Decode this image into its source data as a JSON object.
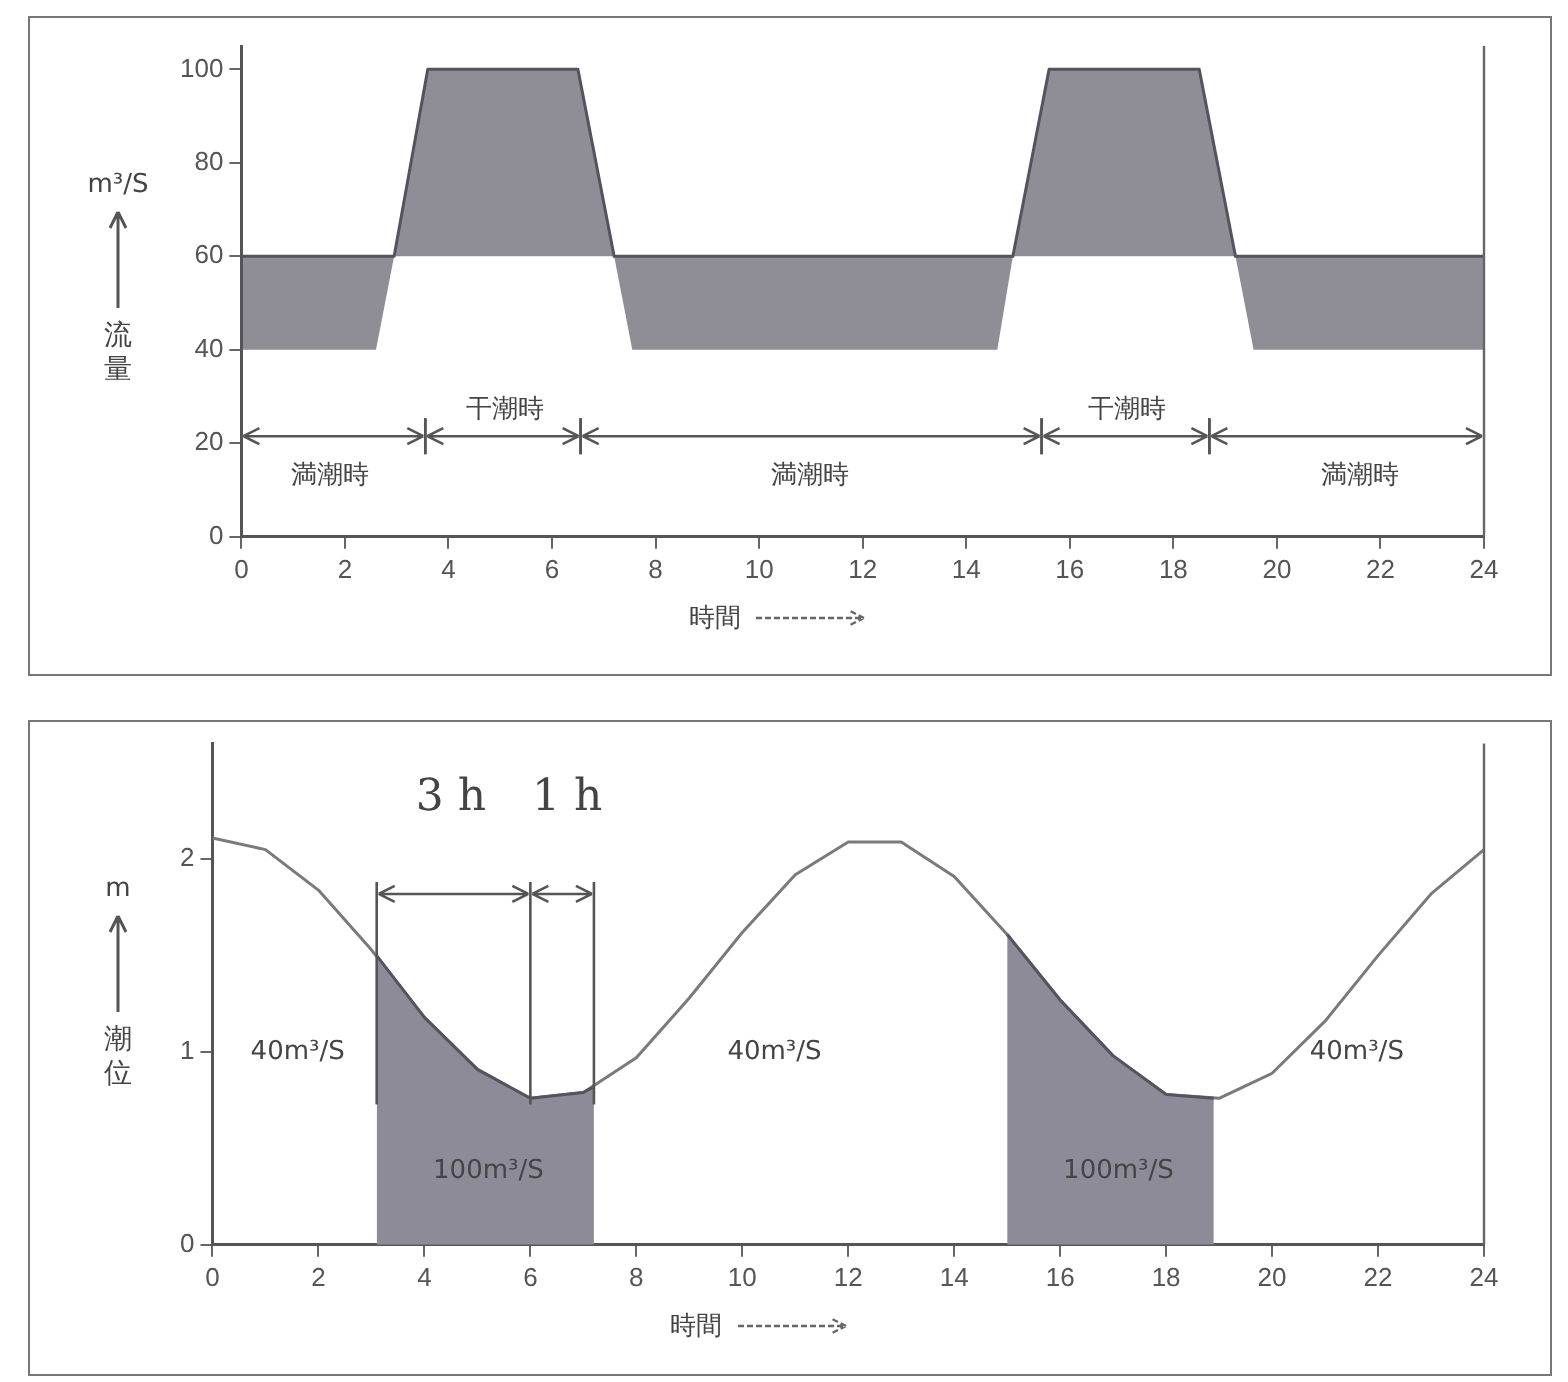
{
  "chart_data": [
    {
      "type": "line",
      "xlabel": "時間",
      "ylabel": "流量",
      "annotations": [
        "m³/S",
        "満潮時",
        "干潮時",
        "満潮時",
        "干潮時",
        "満潮時"
      ],
      "series": [
        {
          "color": "#55535f",
          "x": [
            0,
            2.6,
            2.95,
            3.6,
            6.5,
            7.2,
            7.55,
            14.6,
            14.9,
            15.6,
            18.5,
            19.2,
            19.55,
            24
          ],
          "values": [
            60,
            60,
            60,
            100,
            100,
            60,
            60,
            60,
            60,
            100,
            100,
            60,
            60,
            60
          ],
          "lower": [
            40,
            40,
            60,
            60,
            60,
            60,
            40,
            40,
            60,
            60,
            60,
            60,
            40,
            40
          ],
          "upper": [
            60,
            60,
            60,
            100,
            100,
            60,
            60,
            60,
            60,
            100,
            100,
            60,
            60,
            60
          ]
        }
      ],
      "xlim": [
        0,
        24
      ],
      "xticks": [
        0,
        2,
        4,
        6,
        8,
        10,
        12,
        14,
        16,
        18,
        20,
        22,
        24
      ],
      "ylim": [
        0,
        105
      ],
      "yticks": [
        0,
        20,
        40,
        60,
        80,
        100
      ]
    },
    {
      "type": "line",
      "xlabel": "時間",
      "ylabel": "潮位",
      "annotations": [
        "m",
        "3 h",
        "1 h",
        "40m³/S",
        "40m³/S",
        "40m³/S",
        "100m³/S",
        "100m³/S"
      ],
      "series": [
        {
          "type": "area",
          "color": "#8e8b99",
          "x": [
            3.1,
            4,
            5,
            6,
            7,
            7.2
          ],
          "values": [
            1.5,
            1.18,
            0.91,
            0.76,
            0.79,
            0.82
          ]
        },
        {
          "type": "area",
          "color": "#8e8b99",
          "x": [
            15,
            16,
            17,
            18,
            18.9
          ],
          "values": [
            1.61,
            1.27,
            0.98,
            0.78,
            0.76
          ]
        },
        {
          "color": "#7a7a7a",
          "x": [
            0,
            1,
            2,
            3,
            4,
            5,
            6,
            7,
            8,
            9,
            10,
            11,
            12,
            13,
            14,
            15,
            16,
            17,
            18,
            19,
            20,
            21,
            22,
            23,
            24
          ],
          "values": [
            2.11,
            2.05,
            1.84,
            1.53,
            1.18,
            0.91,
            0.76,
            0.79,
            0.97,
            1.28,
            1.62,
            1.92,
            2.09,
            2.09,
            1.91,
            1.61,
            1.27,
            0.98,
            0.78,
            0.76,
            0.89,
            1.16,
            1.5,
            1.82,
            2.05
          ]
        }
      ],
      "xlim": [
        0,
        24
      ],
      "xticks": [
        0,
        2,
        4,
        6,
        8,
        10,
        12,
        14,
        16,
        18,
        20,
        22,
        24
      ],
      "ylim": [
        0,
        2.6
      ],
      "yticks": [
        0,
        1,
        2
      ],
      "ref_lines": [
        {
          "axis": "x",
          "value": 3.1
        },
        {
          "axis": "x",
          "value": 6.0
        },
        {
          "axis": "x",
          "value": 7.2
        }
      ]
    }
  ]
}
